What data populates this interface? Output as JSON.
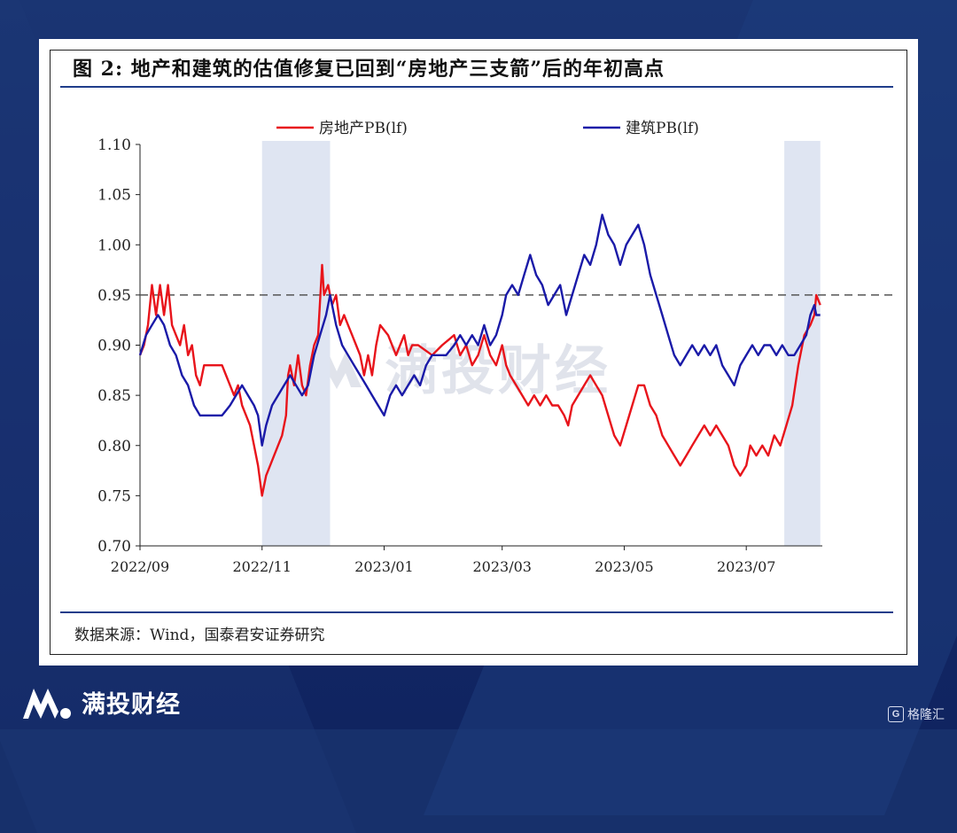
{
  "title": "图 2:  地产和建筑的估值修复已回到“房地产三支箭”后的年初高点",
  "source": "数据来源：Wind，国泰君安证券研究",
  "brand": {
    "name": "满投财经",
    "watermark": "满投财经",
    "corner_badge": "格隆汇"
  },
  "colors": {
    "real_estate": "#e8141b",
    "construction": "#1a1aa8",
    "shade": "#dfe5f2",
    "reference": "#555555",
    "rule": "#1f3d8a"
  },
  "chart_data": {
    "type": "line",
    "title": "",
    "xlabel": "",
    "ylabel": "",
    "ylim": [
      0.7,
      1.1
    ],
    "y_ticks": [
      "0.70",
      "0.75",
      "0.80",
      "0.85",
      "0.90",
      "0.95",
      "1.00",
      "1.05",
      "1.10"
    ],
    "x_ticks": [
      "2022/09",
      "2022/11",
      "2023/01",
      "2023/03",
      "2023/05",
      "2023/07"
    ],
    "legend_position": "top",
    "reference_line": 0.95,
    "shaded_ranges": [
      [
        "2022-11-01",
        "2022-12-05"
      ],
      [
        "2023-07-20",
        "2023-08-07"
      ]
    ],
    "series": [
      {
        "name": "房地产PB(lf)",
        "color": "#e8141b",
        "points": [
          [
            "2022-09-01",
            0.89
          ],
          [
            "2022-09-03",
            0.9
          ],
          [
            "2022-09-05",
            0.92
          ],
          [
            "2022-09-07",
            0.96
          ],
          [
            "2022-09-09",
            0.93
          ],
          [
            "2022-09-11",
            0.96
          ],
          [
            "2022-09-13",
            0.93
          ],
          [
            "2022-09-15",
            0.96
          ],
          [
            "2022-09-17",
            0.92
          ],
          [
            "2022-09-19",
            0.91
          ],
          [
            "2022-09-21",
            0.9
          ],
          [
            "2022-09-23",
            0.92
          ],
          [
            "2022-09-25",
            0.89
          ],
          [
            "2022-09-27",
            0.9
          ],
          [
            "2022-09-29",
            0.87
          ],
          [
            "2022-10-01",
            0.86
          ],
          [
            "2022-10-03",
            0.88
          ],
          [
            "2022-10-08",
            0.88
          ],
          [
            "2022-10-12",
            0.88
          ],
          [
            "2022-10-14",
            0.87
          ],
          [
            "2022-10-16",
            0.86
          ],
          [
            "2022-10-18",
            0.85
          ],
          [
            "2022-10-20",
            0.86
          ],
          [
            "2022-10-22",
            0.84
          ],
          [
            "2022-10-24",
            0.83
          ],
          [
            "2022-10-26",
            0.82
          ],
          [
            "2022-10-28",
            0.8
          ],
          [
            "2022-10-30",
            0.78
          ],
          [
            "2022-11-01",
            0.75
          ],
          [
            "2022-11-03",
            0.77
          ],
          [
            "2022-11-05",
            0.78
          ],
          [
            "2022-11-07",
            0.79
          ],
          [
            "2022-11-09",
            0.8
          ],
          [
            "2022-11-11",
            0.81
          ],
          [
            "2022-11-13",
            0.83
          ],
          [
            "2022-11-14",
            0.87
          ],
          [
            "2022-11-15",
            0.88
          ],
          [
            "2022-11-17",
            0.86
          ],
          [
            "2022-11-19",
            0.89
          ],
          [
            "2022-11-21",
            0.86
          ],
          [
            "2022-11-23",
            0.85
          ],
          [
            "2022-11-25",
            0.88
          ],
          [
            "2022-11-27",
            0.9
          ],
          [
            "2022-11-29",
            0.91
          ],
          [
            "2022-12-01",
            0.98
          ],
          [
            "2022-12-02",
            0.95
          ],
          [
            "2022-12-04",
            0.96
          ],
          [
            "2022-12-06",
            0.94
          ],
          [
            "2022-12-08",
            0.95
          ],
          [
            "2022-12-10",
            0.92
          ],
          [
            "2022-12-12",
            0.93
          ],
          [
            "2022-12-14",
            0.92
          ],
          [
            "2022-12-16",
            0.91
          ],
          [
            "2022-12-18",
            0.9
          ],
          [
            "2022-12-20",
            0.89
          ],
          [
            "2022-12-22",
            0.87
          ],
          [
            "2022-12-24",
            0.89
          ],
          [
            "2022-12-26",
            0.87
          ],
          [
            "2022-12-28",
            0.9
          ],
          [
            "2022-12-30",
            0.92
          ],
          [
            "2023-01-03",
            0.91
          ],
          [
            "2023-01-05",
            0.9
          ],
          [
            "2023-01-07",
            0.89
          ],
          [
            "2023-01-09",
            0.9
          ],
          [
            "2023-01-11",
            0.91
          ],
          [
            "2023-01-13",
            0.89
          ],
          [
            "2023-01-15",
            0.9
          ],
          [
            "2023-01-18",
            0.9
          ],
          [
            "2023-01-25",
            0.89
          ],
          [
            "2023-01-30",
            0.9
          ],
          [
            "2023-02-05",
            0.91
          ],
          [
            "2023-02-08",
            0.89
          ],
          [
            "2023-02-11",
            0.9
          ],
          [
            "2023-02-14",
            0.88
          ],
          [
            "2023-02-17",
            0.89
          ],
          [
            "2023-02-20",
            0.91
          ],
          [
            "2023-02-23",
            0.89
          ],
          [
            "2023-02-26",
            0.88
          ],
          [
            "2023-03-01",
            0.9
          ],
          [
            "2023-03-03",
            0.88
          ],
          [
            "2023-03-05",
            0.87
          ],
          [
            "2023-03-08",
            0.86
          ],
          [
            "2023-03-11",
            0.85
          ],
          [
            "2023-03-14",
            0.84
          ],
          [
            "2023-03-17",
            0.85
          ],
          [
            "2023-03-20",
            0.84
          ],
          [
            "2023-03-23",
            0.85
          ],
          [
            "2023-03-26",
            0.84
          ],
          [
            "2023-03-29",
            0.84
          ],
          [
            "2023-04-01",
            0.83
          ],
          [
            "2023-04-03",
            0.82
          ],
          [
            "2023-04-05",
            0.84
          ],
          [
            "2023-04-08",
            0.85
          ],
          [
            "2023-04-11",
            0.86
          ],
          [
            "2023-04-14",
            0.87
          ],
          [
            "2023-04-17",
            0.86
          ],
          [
            "2023-04-20",
            0.85
          ],
          [
            "2023-04-23",
            0.83
          ],
          [
            "2023-04-26",
            0.81
          ],
          [
            "2023-04-29",
            0.8
          ],
          [
            "2023-05-02",
            0.82
          ],
          [
            "2023-05-05",
            0.84
          ],
          [
            "2023-05-08",
            0.86
          ],
          [
            "2023-05-11",
            0.86
          ],
          [
            "2023-05-14",
            0.84
          ],
          [
            "2023-05-17",
            0.83
          ],
          [
            "2023-05-20",
            0.81
          ],
          [
            "2023-05-23",
            0.8
          ],
          [
            "2023-05-26",
            0.79
          ],
          [
            "2023-05-29",
            0.78
          ],
          [
            "2023-06-01",
            0.79
          ],
          [
            "2023-06-04",
            0.8
          ],
          [
            "2023-06-07",
            0.81
          ],
          [
            "2023-06-10",
            0.82
          ],
          [
            "2023-06-13",
            0.81
          ],
          [
            "2023-06-16",
            0.82
          ],
          [
            "2023-06-19",
            0.81
          ],
          [
            "2023-06-22",
            0.8
          ],
          [
            "2023-06-25",
            0.78
          ],
          [
            "2023-06-28",
            0.77
          ],
          [
            "2023-07-01",
            0.78
          ],
          [
            "2023-07-03",
            0.8
          ],
          [
            "2023-07-06",
            0.79
          ],
          [
            "2023-07-09",
            0.8
          ],
          [
            "2023-07-12",
            0.79
          ],
          [
            "2023-07-15",
            0.81
          ],
          [
            "2023-07-18",
            0.8
          ],
          [
            "2023-07-21",
            0.82
          ],
          [
            "2023-07-24",
            0.84
          ],
          [
            "2023-07-27",
            0.88
          ],
          [
            "2023-07-30",
            0.91
          ],
          [
            "2023-08-02",
            0.92
          ],
          [
            "2023-08-04",
            0.93
          ],
          [
            "2023-08-05",
            0.95
          ],
          [
            "2023-08-07",
            0.94
          ]
        ]
      },
      {
        "name": "建筑PB(lf)",
        "color": "#1a1aa8",
        "points": [
          [
            "2022-09-01",
            0.89
          ],
          [
            "2022-09-04",
            0.91
          ],
          [
            "2022-09-07",
            0.92
          ],
          [
            "2022-09-10",
            0.93
          ],
          [
            "2022-09-13",
            0.92
          ],
          [
            "2022-09-16",
            0.9
          ],
          [
            "2022-09-19",
            0.89
          ],
          [
            "2022-09-22",
            0.87
          ],
          [
            "2022-09-25",
            0.86
          ],
          [
            "2022-09-28",
            0.84
          ],
          [
            "2022-10-01",
            0.83
          ],
          [
            "2022-10-06",
            0.83
          ],
          [
            "2022-10-12",
            0.83
          ],
          [
            "2022-10-16",
            0.84
          ],
          [
            "2022-10-19",
            0.85
          ],
          [
            "2022-10-22",
            0.86
          ],
          [
            "2022-10-25",
            0.85
          ],
          [
            "2022-10-28",
            0.84
          ],
          [
            "2022-10-30",
            0.83
          ],
          [
            "2022-11-01",
            0.8
          ],
          [
            "2022-11-03",
            0.82
          ],
          [
            "2022-11-06",
            0.84
          ],
          [
            "2022-11-09",
            0.85
          ],
          [
            "2022-11-12",
            0.86
          ],
          [
            "2022-11-15",
            0.87
          ],
          [
            "2022-11-18",
            0.86
          ],
          [
            "2022-11-21",
            0.85
          ],
          [
            "2022-11-24",
            0.86
          ],
          [
            "2022-11-27",
            0.89
          ],
          [
            "2022-11-30",
            0.91
          ],
          [
            "2022-12-03",
            0.93
          ],
          [
            "2022-12-05",
            0.95
          ],
          [
            "2022-12-08",
            0.92
          ],
          [
            "2022-12-11",
            0.9
          ],
          [
            "2022-12-14",
            0.89
          ],
          [
            "2022-12-17",
            0.88
          ],
          [
            "2022-12-20",
            0.87
          ],
          [
            "2022-12-23",
            0.86
          ],
          [
            "2022-12-26",
            0.85
          ],
          [
            "2022-12-29",
            0.84
          ],
          [
            "2023-01-01",
            0.83
          ],
          [
            "2023-01-04",
            0.85
          ],
          [
            "2023-01-07",
            0.86
          ],
          [
            "2023-01-10",
            0.85
          ],
          [
            "2023-01-13",
            0.86
          ],
          [
            "2023-01-16",
            0.87
          ],
          [
            "2023-01-19",
            0.86
          ],
          [
            "2023-01-22",
            0.88
          ],
          [
            "2023-01-25",
            0.89
          ],
          [
            "2023-02-01",
            0.89
          ],
          [
            "2023-02-05",
            0.9
          ],
          [
            "2023-02-08",
            0.91
          ],
          [
            "2023-02-11",
            0.9
          ],
          [
            "2023-02-14",
            0.91
          ],
          [
            "2023-02-17",
            0.9
          ],
          [
            "2023-02-20",
            0.92
          ],
          [
            "2023-02-23",
            0.9
          ],
          [
            "2023-02-26",
            0.91
          ],
          [
            "2023-03-01",
            0.93
          ],
          [
            "2023-03-03",
            0.95
          ],
          [
            "2023-03-06",
            0.96
          ],
          [
            "2023-03-09",
            0.95
          ],
          [
            "2023-03-12",
            0.97
          ],
          [
            "2023-03-15",
            0.99
          ],
          [
            "2023-03-18",
            0.97
          ],
          [
            "2023-03-21",
            0.96
          ],
          [
            "2023-03-24",
            0.94
          ],
          [
            "2023-03-27",
            0.95
          ],
          [
            "2023-03-30",
            0.96
          ],
          [
            "2023-04-02",
            0.93
          ],
          [
            "2023-04-05",
            0.95
          ],
          [
            "2023-04-08",
            0.97
          ],
          [
            "2023-04-11",
            0.99
          ],
          [
            "2023-04-14",
            0.98
          ],
          [
            "2023-04-17",
            1.0
          ],
          [
            "2023-04-20",
            1.03
          ],
          [
            "2023-04-23",
            1.01
          ],
          [
            "2023-04-26",
            1.0
          ],
          [
            "2023-04-29",
            0.98
          ],
          [
            "2023-05-02",
            1.0
          ],
          [
            "2023-05-05",
            1.01
          ],
          [
            "2023-05-08",
            1.02
          ],
          [
            "2023-05-11",
            1.0
          ],
          [
            "2023-05-14",
            0.97
          ],
          [
            "2023-05-17",
            0.95
          ],
          [
            "2023-05-20",
            0.93
          ],
          [
            "2023-05-23",
            0.91
          ],
          [
            "2023-05-26",
            0.89
          ],
          [
            "2023-05-29",
            0.88
          ],
          [
            "2023-06-01",
            0.89
          ],
          [
            "2023-06-04",
            0.9
          ],
          [
            "2023-06-07",
            0.89
          ],
          [
            "2023-06-10",
            0.9
          ],
          [
            "2023-06-13",
            0.89
          ],
          [
            "2023-06-16",
            0.9
          ],
          [
            "2023-06-19",
            0.88
          ],
          [
            "2023-06-22",
            0.87
          ],
          [
            "2023-06-25",
            0.86
          ],
          [
            "2023-06-28",
            0.88
          ],
          [
            "2023-07-01",
            0.89
          ],
          [
            "2023-07-04",
            0.9
          ],
          [
            "2023-07-07",
            0.89
          ],
          [
            "2023-07-10",
            0.9
          ],
          [
            "2023-07-13",
            0.9
          ],
          [
            "2023-07-16",
            0.89
          ],
          [
            "2023-07-19",
            0.9
          ],
          [
            "2023-07-22",
            0.89
          ],
          [
            "2023-07-25",
            0.89
          ],
          [
            "2023-07-28",
            0.9
          ],
          [
            "2023-07-31",
            0.91
          ],
          [
            "2023-08-02",
            0.93
          ],
          [
            "2023-08-04",
            0.94
          ],
          [
            "2023-08-05",
            0.93
          ],
          [
            "2023-08-07",
            0.93
          ]
        ]
      }
    ]
  }
}
